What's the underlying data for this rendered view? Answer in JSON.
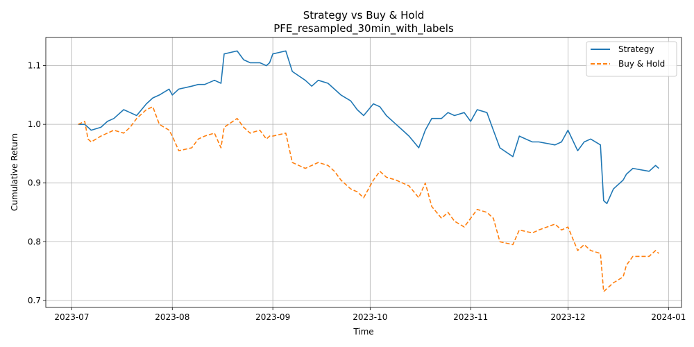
{
  "chart_data": {
    "type": "line",
    "title": "Strategy vs Buy & Hold",
    "subtitle": "PFE_resampled_30min_with_labels",
    "xlabel": "Time",
    "ylabel": "Cumulative Return",
    "xlim": [
      "2023-06-23",
      "2024-01-05"
    ],
    "ylim": [
      0.688,
      1.148
    ],
    "x_ticks": [
      "2023-07",
      "2023-08",
      "2023-09",
      "2023-10",
      "2023-11",
      "2023-12",
      "2024-01"
    ],
    "y_ticks": [
      0.7,
      0.8,
      0.9,
      1.0,
      1.1
    ],
    "y_tick_labels": [
      "0.7",
      "0.8",
      "0.9",
      "1.0",
      "1.1"
    ],
    "grid": true,
    "legend_position": "top-right",
    "series": [
      {
        "name": "Strategy",
        "color": "#1f77b4",
        "style": "solid",
        "points": [
          [
            "2023-07-03",
            1.0
          ],
          [
            "2023-07-05",
            1.0
          ],
          [
            "2023-07-06",
            0.995
          ],
          [
            "2023-07-07",
            0.99
          ],
          [
            "2023-07-10",
            0.995
          ],
          [
            "2023-07-12",
            1.005
          ],
          [
            "2023-07-14",
            1.01
          ],
          [
            "2023-07-17",
            1.025
          ],
          [
            "2023-07-19",
            1.02
          ],
          [
            "2023-07-21",
            1.015
          ],
          [
            "2023-07-24",
            1.035
          ],
          [
            "2023-07-26",
            1.045
          ],
          [
            "2023-07-28",
            1.05
          ],
          [
            "2023-07-31",
            1.06
          ],
          [
            "2023-08-01",
            1.05
          ],
          [
            "2023-08-03",
            1.06
          ],
          [
            "2023-08-07",
            1.065
          ],
          [
            "2023-08-09",
            1.068
          ],
          [
            "2023-08-11",
            1.068
          ],
          [
            "2023-08-14",
            1.075
          ],
          [
            "2023-08-16",
            1.07
          ],
          [
            "2023-08-17",
            1.12
          ],
          [
            "2023-08-21",
            1.125
          ],
          [
            "2023-08-23",
            1.11
          ],
          [
            "2023-08-25",
            1.105
          ],
          [
            "2023-08-28",
            1.105
          ],
          [
            "2023-08-30",
            1.1
          ],
          [
            "2023-08-31",
            1.105
          ],
          [
            "2023-09-01",
            1.12
          ],
          [
            "2023-09-05",
            1.125
          ],
          [
            "2023-09-07",
            1.09
          ],
          [
            "2023-09-11",
            1.075
          ],
          [
            "2023-09-13",
            1.065
          ],
          [
            "2023-09-15",
            1.075
          ],
          [
            "2023-09-18",
            1.07
          ],
          [
            "2023-09-20",
            1.06
          ],
          [
            "2023-09-22",
            1.05
          ],
          [
            "2023-09-25",
            1.04
          ],
          [
            "2023-09-27",
            1.025
          ],
          [
            "2023-09-29",
            1.015
          ],
          [
            "2023-10-02",
            1.035
          ],
          [
            "2023-10-04",
            1.03
          ],
          [
            "2023-10-06",
            1.015
          ],
          [
            "2023-10-09",
            1.0
          ],
          [
            "2023-10-11",
            0.99
          ],
          [
            "2023-10-13",
            0.98
          ],
          [
            "2023-10-16",
            0.96
          ],
          [
            "2023-10-18",
            0.99
          ],
          [
            "2023-10-20",
            1.01
          ],
          [
            "2023-10-23",
            1.01
          ],
          [
            "2023-10-25",
            1.02
          ],
          [
            "2023-10-27",
            1.015
          ],
          [
            "2023-10-30",
            1.02
          ],
          [
            "2023-11-01",
            1.005
          ],
          [
            "2023-11-03",
            1.025
          ],
          [
            "2023-11-06",
            1.02
          ],
          [
            "2023-11-08",
            0.99
          ],
          [
            "2023-11-10",
            0.96
          ],
          [
            "2023-11-14",
            0.945
          ],
          [
            "2023-11-16",
            0.98
          ],
          [
            "2023-11-20",
            0.97
          ],
          [
            "2023-11-22",
            0.97
          ],
          [
            "2023-11-27",
            0.965
          ],
          [
            "2023-11-29",
            0.97
          ],
          [
            "2023-12-01",
            0.99
          ],
          [
            "2023-12-04",
            0.955
          ],
          [
            "2023-12-06",
            0.97
          ],
          [
            "2023-12-08",
            0.975
          ],
          [
            "2023-12-11",
            0.965
          ],
          [
            "2023-12-12",
            0.87
          ],
          [
            "2023-12-13",
            0.865
          ],
          [
            "2023-12-15",
            0.89
          ],
          [
            "2023-12-18",
            0.905
          ],
          [
            "2023-12-19",
            0.915
          ],
          [
            "2023-12-21",
            0.925
          ],
          [
            "2023-12-26",
            0.92
          ],
          [
            "2023-12-28",
            0.93
          ],
          [
            "2023-12-29",
            0.925
          ]
        ]
      },
      {
        "name": "Buy & Hold",
        "color": "#ff7f0e",
        "style": "dashed",
        "points": [
          [
            "2023-07-03",
            1.0
          ],
          [
            "2023-07-05",
            1.005
          ],
          [
            "2023-07-06",
            0.975
          ],
          [
            "2023-07-07",
            0.97
          ],
          [
            "2023-07-10",
            0.98
          ],
          [
            "2023-07-12",
            0.985
          ],
          [
            "2023-07-14",
            0.99
          ],
          [
            "2023-07-17",
            0.985
          ],
          [
            "2023-07-19",
            0.995
          ],
          [
            "2023-07-21",
            1.01
          ],
          [
            "2023-07-24",
            1.025
          ],
          [
            "2023-07-26",
            1.03
          ],
          [
            "2023-07-28",
            1.0
          ],
          [
            "2023-07-31",
            0.99
          ],
          [
            "2023-08-01",
            0.98
          ],
          [
            "2023-08-03",
            0.955
          ],
          [
            "2023-08-07",
            0.96
          ],
          [
            "2023-08-09",
            0.975
          ],
          [
            "2023-08-11",
            0.98
          ],
          [
            "2023-08-14",
            0.985
          ],
          [
            "2023-08-16",
            0.96
          ],
          [
            "2023-08-17",
            0.995
          ],
          [
            "2023-08-21",
            1.01
          ],
          [
            "2023-08-23",
            0.995
          ],
          [
            "2023-08-25",
            0.985
          ],
          [
            "2023-08-28",
            0.99
          ],
          [
            "2023-08-30",
            0.975
          ],
          [
            "2023-08-31",
            0.98
          ],
          [
            "2023-09-01",
            0.98
          ],
          [
            "2023-09-05",
            0.985
          ],
          [
            "2023-09-07",
            0.935
          ],
          [
            "2023-09-11",
            0.925
          ],
          [
            "2023-09-13",
            0.93
          ],
          [
            "2023-09-15",
            0.935
          ],
          [
            "2023-09-18",
            0.93
          ],
          [
            "2023-09-20",
            0.92
          ],
          [
            "2023-09-22",
            0.905
          ],
          [
            "2023-09-25",
            0.89
          ],
          [
            "2023-09-27",
            0.885
          ],
          [
            "2023-09-29",
            0.875
          ],
          [
            "2023-10-02",
            0.905
          ],
          [
            "2023-10-04",
            0.92
          ],
          [
            "2023-10-06",
            0.91
          ],
          [
            "2023-10-09",
            0.905
          ],
          [
            "2023-10-11",
            0.9
          ],
          [
            "2023-10-13",
            0.895
          ],
          [
            "2023-10-16",
            0.875
          ],
          [
            "2023-10-18",
            0.9
          ],
          [
            "2023-10-20",
            0.86
          ],
          [
            "2023-10-23",
            0.84
          ],
          [
            "2023-10-25",
            0.85
          ],
          [
            "2023-10-27",
            0.835
          ],
          [
            "2023-10-30",
            0.825
          ],
          [
            "2023-11-01",
            0.84
          ],
          [
            "2023-11-03",
            0.855
          ],
          [
            "2023-11-06",
            0.85
          ],
          [
            "2023-11-08",
            0.84
          ],
          [
            "2023-11-10",
            0.8
          ],
          [
            "2023-11-14",
            0.795
          ],
          [
            "2023-11-16",
            0.82
          ],
          [
            "2023-11-20",
            0.815
          ],
          [
            "2023-11-22",
            0.82
          ],
          [
            "2023-11-27",
            0.83
          ],
          [
            "2023-11-29",
            0.82
          ],
          [
            "2023-12-01",
            0.825
          ],
          [
            "2023-12-04",
            0.785
          ],
          [
            "2023-12-06",
            0.795
          ],
          [
            "2023-12-08",
            0.785
          ],
          [
            "2023-12-11",
            0.78
          ],
          [
            "2023-12-12",
            0.715
          ],
          [
            "2023-12-13",
            0.72
          ],
          [
            "2023-12-15",
            0.73
          ],
          [
            "2023-12-18",
            0.74
          ],
          [
            "2023-12-19",
            0.76
          ],
          [
            "2023-12-21",
            0.775
          ],
          [
            "2023-12-26",
            0.775
          ],
          [
            "2023-12-28",
            0.785
          ],
          [
            "2023-12-29",
            0.78
          ]
        ]
      }
    ]
  }
}
